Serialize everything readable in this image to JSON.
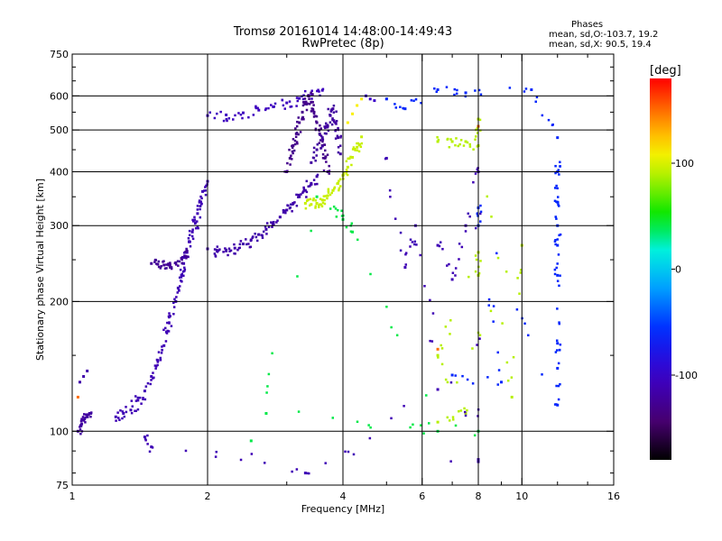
{
  "header": {
    "title_line1": "Tromsø 20161014 14:48:00-14:49:43",
    "title_line2": "RwPretec (8p)"
  },
  "phases": {
    "title": "Phases",
    "line_o": "mean, sd,O:-103.7, 19.2",
    "line_x": "mean, sd,X:  90.5, 19.4"
  },
  "colorbar": {
    "label": "[deg]",
    "range": [
      -180,
      180
    ],
    "ticks": [
      {
        "value": 100,
        "label": "100"
      },
      {
        "value": 0,
        "label": "0"
      },
      {
        "value": -100,
        "label": "-100"
      }
    ]
  },
  "chart_data": {
    "type": "scatter",
    "title": "Tromsø 20161014 14:48:00-14:49:43",
    "subtitle": "RwPretec (8p)",
    "xlabel": "Frequency [MHz]",
    "ylabel": "Stationary phase Virtual Height [km]",
    "x_scale": "log",
    "y_scale": "log",
    "xlim": [
      1,
      16
    ],
    "ylim": [
      75,
      750
    ],
    "x_ticks": [
      1,
      2,
      4,
      6,
      8,
      10,
      16
    ],
    "y_ticks": [
      75,
      100,
      200,
      300,
      400,
      500,
      600,
      750
    ],
    "grid_x": [
      2,
      4,
      6,
      8,
      10
    ],
    "grid_y": [
      100,
      200,
      300,
      400,
      500,
      600
    ],
    "color_variable": "phase [deg]",
    "traces": [
      {
        "name": "",
        "phase": -120,
        "points": [
          [
            1.03,
            100
          ],
          [
            1.05,
            104
          ],
          [
            1.06,
            106
          ],
          [
            1.08,
            108
          ],
          [
            1.1,
            110
          ]
        ]
      },
      {
        "name": "",
        "phase": -115,
        "points": [
          [
            1.04,
            130
          ],
          [
            1.06,
            134
          ],
          [
            1.08,
            138
          ]
        ]
      },
      {
        "name": "",
        "phase": -110,
        "points": [
          [
            1.25,
            108
          ],
          [
            1.3,
            110
          ],
          [
            1.35,
            112
          ],
          [
            1.4,
            118
          ],
          [
            1.45,
            124
          ],
          [
            1.5,
            134
          ],
          [
            1.55,
            146
          ],
          [
            1.6,
            158
          ],
          [
            1.62,
            170
          ],
          [
            1.65,
            185
          ],
          [
            1.7,
            200
          ],
          [
            1.72,
            215
          ],
          [
            1.75,
            230
          ],
          [
            1.77,
            245
          ],
          [
            1.8,
            260
          ],
          [
            1.82,
            275
          ],
          [
            1.85,
            290
          ],
          [
            1.88,
            305
          ],
          [
            1.9,
            320
          ],
          [
            1.92,
            340
          ],
          [
            1.95,
            360
          ],
          [
            2.0,
            380
          ]
        ]
      },
      {
        "name": "",
        "phase": -125,
        "points": [
          [
            1.5,
            245
          ],
          [
            1.55,
            244
          ],
          [
            1.6,
            243
          ],
          [
            1.65,
            243
          ],
          [
            1.7,
            246
          ],
          [
            1.75,
            252
          ],
          [
            1.8,
            262
          ]
        ]
      },
      {
        "name": "",
        "phase": -115,
        "points": [
          [
            2.0,
            265
          ],
          [
            2.1,
            262
          ],
          [
            2.2,
            262
          ],
          [
            2.3,
            266
          ],
          [
            2.4,
            272
          ],
          [
            2.5,
            278
          ],
          [
            2.6,
            286
          ],
          [
            2.7,
            294
          ],
          [
            2.8,
            304
          ],
          [
            2.9,
            314
          ],
          [
            3.0,
            326
          ],
          [
            3.1,
            338
          ],
          [
            3.2,
            350
          ],
          [
            3.3,
            362
          ],
          [
            3.4,
            376
          ],
          [
            3.5,
            390
          ]
        ]
      },
      {
        "name": "",
        "phase": -105,
        "points": [
          [
            2.0,
            540
          ],
          [
            2.2,
            542
          ],
          [
            2.4,
            548
          ],
          [
            2.6,
            556
          ],
          [
            2.8,
            566
          ],
          [
            3.0,
            578
          ],
          [
            3.2,
            592
          ],
          [
            3.4,
            606
          ],
          [
            3.6,
            618
          ]
        ]
      },
      {
        "name": "",
        "phase": -130,
        "points": [
          [
            3.0,
            400
          ],
          [
            3.05,
            430
          ],
          [
            3.1,
            460
          ],
          [
            3.15,
            490
          ],
          [
            3.2,
            520
          ],
          [
            3.25,
            550
          ],
          [
            3.3,
            580
          ],
          [
            3.35,
            600
          ],
          [
            3.4,
            580
          ],
          [
            3.45,
            550
          ],
          [
            3.5,
            520
          ],
          [
            3.55,
            490
          ],
          [
            3.6,
            460
          ],
          [
            3.65,
            430
          ],
          [
            3.7,
            400
          ]
        ]
      },
      {
        "name": "",
        "phase": -120,
        "points": [
          [
            3.4,
            420
          ],
          [
            3.5,
            450
          ],
          [
            3.6,
            480
          ],
          [
            3.7,
            510
          ],
          [
            3.75,
            540
          ],
          [
            3.8,
            560
          ],
          [
            3.85,
            520
          ],
          [
            3.9,
            480
          ],
          [
            3.95,
            440
          ]
        ]
      },
      {
        "name": "",
        "phase": 95,
        "points": [
          [
            3.3,
            338
          ],
          [
            3.4,
            336
          ],
          [
            3.5,
            338
          ],
          [
            3.6,
            344
          ],
          [
            3.7,
            352
          ],
          [
            3.8,
            362
          ],
          [
            3.9,
            376
          ],
          [
            4.0,
            392
          ],
          [
            4.1,
            410
          ],
          [
            4.2,
            432
          ],
          [
            4.3,
            456
          ],
          [
            4.4,
            482
          ]
        ]
      },
      {
        "name": "",
        "phase": 110,
        "points": [
          [
            4.1,
            520
          ],
          [
            4.2,
            545
          ],
          [
            4.3,
            570
          ],
          [
            4.4,
            590
          ]
        ]
      },
      {
        "name": "",
        "phase": -100,
        "points": [
          [
            4.5,
            600
          ],
          [
            4.6,
            590
          ],
          [
            4.7,
            585
          ]
        ]
      },
      {
        "name": "",
        "phase": -60,
        "points": [
          [
            5.0,
            590
          ],
          [
            5.5,
            560
          ],
          [
            6.5,
            620
          ],
          [
            7.5,
            610
          ],
          [
            10.5,
            620
          ],
          [
            12,
            480
          ],
          [
            12,
            400
          ],
          [
            12,
            340
          ],
          [
            12,
            300
          ],
          [
            12,
            270
          ],
          [
            12,
            230
          ],
          [
            12,
            160
          ],
          [
            12,
            140
          ],
          [
            12,
            115
          ],
          [
            8.0,
            330
          ],
          [
            8.0,
            300
          ],
          [
            9.0,
            130
          ],
          [
            7.0,
            135
          ]
        ]
      },
      {
        "name": "",
        "phase": 90,
        "points": [
          [
            6.5,
            470
          ],
          [
            7.0,
            470
          ],
          [
            7.5,
            470
          ],
          [
            8.0,
            460
          ],
          [
            8.0,
            530
          ],
          [
            9.5,
            120
          ],
          [
            10,
            270
          ],
          [
            6.5,
            105
          ],
          [
            7.5,
            110
          ],
          [
            6.5,
            150
          ],
          [
            8.0,
            260
          ],
          [
            8.0,
            230
          ]
        ]
      },
      {
        "name": "",
        "phase": 150,
        "points": [
          [
            6.5,
            155
          ],
          [
            8.0,
            510
          ],
          [
            1.03,
            120
          ]
        ]
      },
      {
        "name": "",
        "phase": -110,
        "points": [
          [
            6.5,
            270
          ],
          [
            7.0,
            225
          ],
          [
            7.5,
            300
          ],
          [
            8.0,
            400
          ],
          [
            8.0,
            85
          ],
          [
            5.0,
            430
          ],
          [
            5.5,
            240
          ],
          [
            5.8,
            300
          ],
          [
            6.5,
            125
          ],
          [
            3.3,
            80
          ],
          [
            1.45,
            97
          ],
          [
            1.5,
            92
          ],
          [
            8.0,
            86
          ]
        ]
      },
      {
        "name": "",
        "phase": 40,
        "points": [
          [
            2.5,
            95
          ],
          [
            3.5,
            350
          ],
          [
            4.0,
            310
          ],
          [
            4.2,
            290
          ],
          [
            6.5,
            100
          ],
          [
            2.7,
            110
          ],
          [
            8.0,
            100
          ]
        ]
      }
    ]
  }
}
